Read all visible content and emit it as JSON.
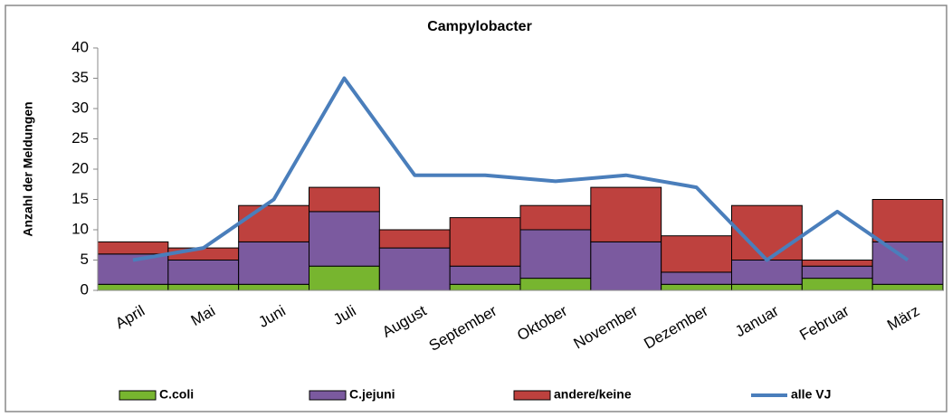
{
  "chart_data": {
    "type": "stacked-bar-line",
    "title": "Campylobacter",
    "y_label": "Anzahl der Meldungen",
    "categories": [
      "April",
      "Mai",
      "Juni",
      "Juli",
      "August",
      "September",
      "Oktober",
      "November",
      "Dezember",
      "Januar",
      "Februar",
      "März"
    ],
    "series": [
      {
        "name": "C.coli",
        "color": "#77b52f",
        "values": [
          1,
          1,
          1,
          4,
          0,
          1,
          2,
          0,
          1,
          1,
          2,
          1
        ]
      },
      {
        "name": "C.jejuni",
        "color": "#7b5a9f",
        "values": [
          5,
          4,
          7,
          9,
          7,
          3,
          8,
          8,
          2,
          4,
          2,
          7
        ]
      },
      {
        "name": "andere/keine",
        "color": "#be413e",
        "values": [
          2,
          2,
          6,
          4,
          3,
          8,
          4,
          9,
          6,
          9,
          1,
          7
        ]
      },
      {
        "name": "alle VJ",
        "color": "#4a7ebb",
        "type": "line",
        "values": [
          5,
          7,
          15,
          35,
          19,
          19,
          18,
          19,
          17,
          5,
          13,
          5
        ]
      }
    ],
    "ylim": [
      0,
      40
    ],
    "yticks": [
      0,
      5,
      10,
      15,
      20,
      25,
      30,
      35,
      40
    ],
    "grid": false,
    "legend": "bottom"
  }
}
